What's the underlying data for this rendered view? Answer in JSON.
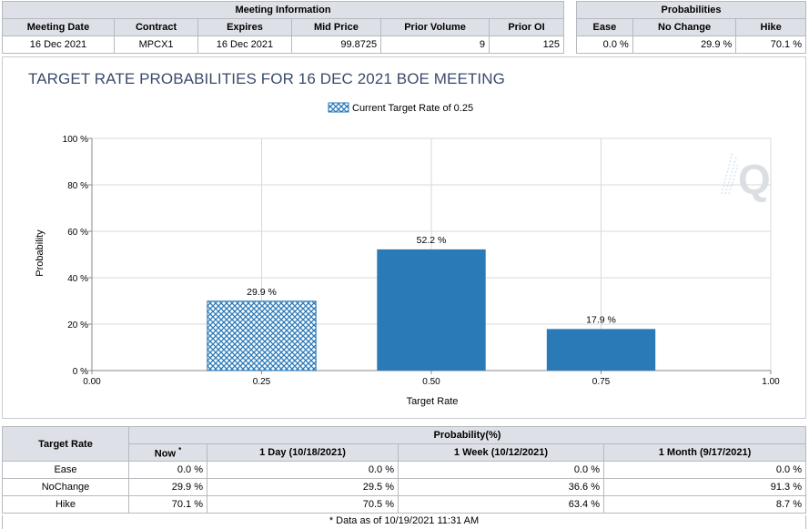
{
  "meeting_info": {
    "section_title": "Meeting Information",
    "columns": [
      "Meeting Date",
      "Contract",
      "Expires",
      "Mid Price",
      "Prior Volume",
      "Prior OI"
    ],
    "row": [
      "16 Dec 2021",
      "MPCX1",
      "16 Dec 2021",
      "99.8725",
      "9",
      "125"
    ]
  },
  "probabilities": {
    "section_title": "Probabilities",
    "columns": [
      "Ease",
      "No Change",
      "Hike"
    ],
    "row": [
      "0.0 %",
      "29.9 %",
      "70.1 %"
    ]
  },
  "chart_title": "TARGET RATE PROBABILITIES FOR 16 DEC 2021 BOE MEETING",
  "chart_data": {
    "type": "bar",
    "title": "TARGET RATE PROBABILITIES FOR 16 DEC 2021 BOE MEETING",
    "xlabel": "Target Rate",
    "ylabel": "Probability",
    "xlim": [
      0.0,
      1.0
    ],
    "ylim": [
      0,
      100
    ],
    "x_ticks": [
      "0.00",
      "0.25",
      "0.50",
      "0.75",
      "1.00"
    ],
    "y_ticks": [
      "0 %",
      "20 %",
      "40 %",
      "60 %",
      "80 %",
      "100 %"
    ],
    "grid": true,
    "legend": "top-center",
    "legend_label": "Current Target Rate of 0.25",
    "bars": [
      {
        "x": 0.25,
        "value": 29.9,
        "label": "29.9 %",
        "current": true
      },
      {
        "x": 0.5,
        "value": 52.2,
        "label": "52.2 %",
        "current": false
      },
      {
        "x": 0.75,
        "value": 17.9,
        "label": "17.9 %",
        "current": false
      }
    ],
    "bar_color": "#2a7ab8",
    "pattern_color": "#2a7ab8"
  },
  "rate_table": {
    "target_rate_label": "Target Rate",
    "group_label": "Probability(%)",
    "now_label": "Now",
    "now_mark": "*",
    "columns": [
      "1 Day (10/18/2021)",
      "1 Week (10/12/2021)",
      "1 Month (9/17/2021)"
    ],
    "rows": [
      {
        "name": "Ease",
        "now": "0.0 %",
        "d1": "0.0 %",
        "w1": "0.0 %",
        "m1": "0.0 %"
      },
      {
        "name": "NoChange",
        "now": "29.9 %",
        "d1": "29.5 %",
        "w1": "36.6 %",
        "m1": "91.3 %"
      },
      {
        "name": "Hike",
        "now": "70.1 %",
        "d1": "70.5 %",
        "w1": "63.4 %",
        "m1": "8.7 %"
      }
    ],
    "footnote": "* Data as of 10/19/2021 11:31 AM"
  }
}
